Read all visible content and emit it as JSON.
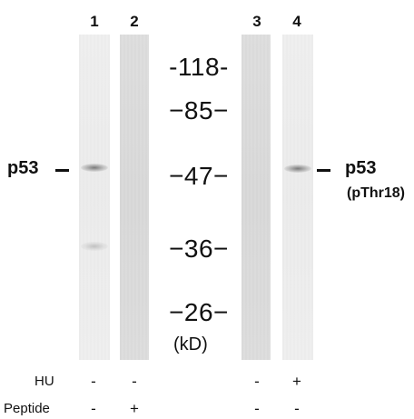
{
  "lanes": [
    "1",
    "2",
    "3",
    "4"
  ],
  "markers": [
    "-118-",
    "−85−",
    "−47−",
    "−36−",
    "−26−"
  ],
  "unit": "(kD)",
  "left_label": "p53",
  "right_label": "p53",
  "right_sublabel": "(pThr18)",
  "treatments": [
    {
      "label": "HU",
      "signs": [
        "-",
        "-",
        "-",
        "+"
      ]
    },
    {
      "label": "Peptide",
      "signs": [
        "-",
        "+",
        "-",
        "-"
      ]
    }
  ]
}
